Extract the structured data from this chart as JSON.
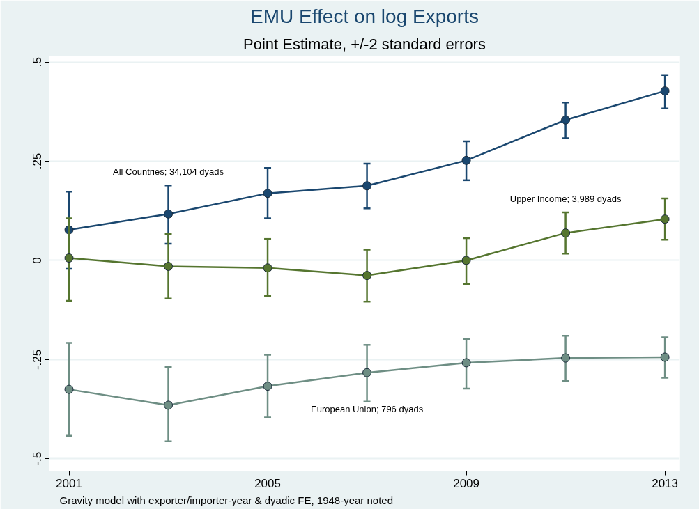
{
  "chart_data": {
    "type": "line",
    "title": "EMU Effect on log Exports",
    "subtitle": "Point Estimate, +/-2 standard errors",
    "x": [
      2001,
      2003,
      2005,
      2007,
      2009,
      2011,
      2013
    ],
    "series": [
      {
        "name": "All Countries; 34,104 dyads",
        "color": "#1a476f",
        "values": [
          0.077,
          0.117,
          0.169,
          0.188,
          0.252,
          0.354,
          0.427
        ],
        "errors": [
          [
            -0.021,
            0.173
          ],
          [
            0.042,
            0.189
          ],
          [
            0.106,
            0.233
          ],
          [
            0.131,
            0.244
          ],
          [
            0.202,
            0.3
          ],
          [
            0.308,
            0.398
          ],
          [
            0.383,
            0.467
          ]
        ]
      },
      {
        "name": "Upper Income; 3,989 dyads",
        "color": "#55752f",
        "values": [
          0.006,
          -0.015,
          -0.019,
          -0.038,
          0.0,
          0.069,
          0.104
        ],
        "errors": [
          [
            -0.102,
            0.106
          ],
          [
            -0.096,
            0.067
          ],
          [
            -0.09,
            0.054
          ],
          [
            -0.104,
            0.027
          ],
          [
            -0.06,
            0.056
          ],
          [
            0.017,
            0.121
          ],
          [
            0.052,
            0.156
          ]
        ]
      },
      {
        "name": "European Union; 796 dyads",
        "color": "#6e8e84",
        "values": [
          -0.325,
          -0.365,
          -0.317,
          -0.283,
          -0.258,
          -0.246,
          -0.244
        ],
        "errors": [
          [
            -0.442,
            -0.208
          ],
          [
            -0.456,
            -0.269
          ],
          [
            -0.396,
            -0.238
          ],
          [
            -0.356,
            -0.213
          ],
          [
            -0.323,
            -0.198
          ],
          [
            -0.304,
            -0.19
          ],
          [
            -0.296,
            -0.194
          ]
        ]
      }
    ],
    "marker": "circle",
    "line_style": "solid",
    "grid": "y",
    "xlim": [
      2000.6,
      2013.3
    ],
    "xticks": [
      2001,
      2005,
      2009,
      2013
    ],
    "ylim": [
      -0.531,
      0.515
    ],
    "yticks": [
      {
        "value": -0.5,
        "label": "-.5"
      },
      {
        "value": -0.25,
        "label": "-.25"
      },
      {
        "value": 0,
        "label": "0"
      },
      {
        "value": 0.25,
        "label": ".25"
      },
      {
        "value": 0.5,
        "label": ".5"
      }
    ],
    "annotations": [
      "Gravity model with exporter/importer-year & dyadic FE, 1948-year noted"
    ]
  }
}
